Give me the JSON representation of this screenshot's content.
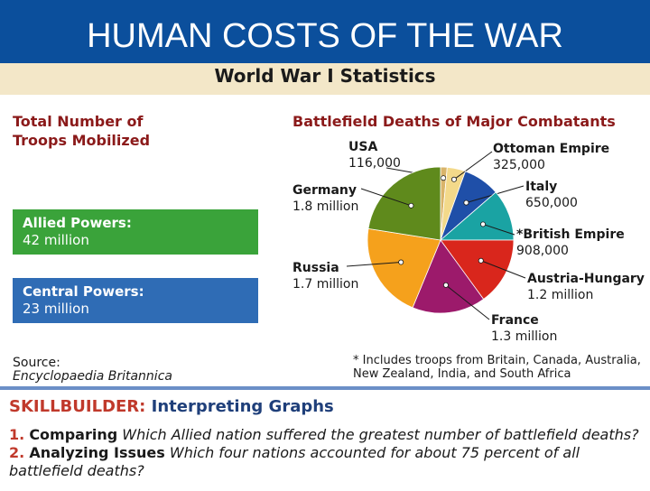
{
  "slide_title": "HUMAN COSTS OF THE WAR",
  "card_title": "World War I Statistics",
  "troops": {
    "title": "Total Number of Troops Mobilized",
    "allied_label": "Allied Powers:",
    "allied_value": "42 million",
    "central_label": "Central Powers:",
    "central_value": "23 million"
  },
  "source": {
    "label": "Source:",
    "text": "Encyclopaedia Britannica"
  },
  "footnote": "* Includes troops from Britain, Canada, Australia, New Zealand, India, and South Africa",
  "skillbuilder": {
    "label": "SKILLBUILDER:",
    "title": "Interpreting Graphs",
    "q1_num": "1.",
    "q1_lead": "Comparing",
    "q1_text": "Which Allied nation suffered the greatest number of battlefield deaths?",
    "q2_num": "2.",
    "q2_lead": "Analyzing Issues",
    "q2_text": "Which four nations accounted for about 75 percent of all battlefield deaths?"
  },
  "chart_data": {
    "type": "pie",
    "title": "Battlefield Deaths of Major Combatants",
    "slices": [
      {
        "name": "USA",
        "label": "116,000",
        "value": 116000,
        "color": "#d9b46a"
      },
      {
        "name": "Ottoman Empire",
        "label": "325,000",
        "value": 325000,
        "color": "#f3d98a"
      },
      {
        "name": "Italy",
        "label": "650,000",
        "value": 650000,
        "color": "#1f4fa8"
      },
      {
        "name": "*British Empire",
        "label": "908,000",
        "value": 908000,
        "color": "#1aa3a3"
      },
      {
        "name": "Austria-Hungary",
        "label": "1.2 million",
        "value": 1200000,
        "color": "#d9261c"
      },
      {
        "name": "France",
        "label": "1.3 million",
        "value": 1300000,
        "color": "#9c1a6b"
      },
      {
        "name": "Russia",
        "label": "1.7 million",
        "value": 1700000,
        "color": "#f5a11c"
      },
      {
        "name": "Germany",
        "label": "1.8 million",
        "value": 1800000,
        "color": "#5f8a1c"
      }
    ]
  }
}
